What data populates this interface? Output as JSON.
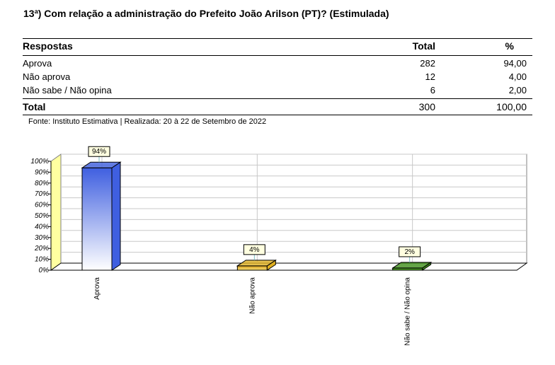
{
  "title": "13ª) Com relação a administração do Prefeito João Arilson (PT)? (Estimulada)",
  "table": {
    "headers": [
      "Respostas",
      "Total",
      "%"
    ],
    "rows": [
      {
        "label": "Aprova",
        "total": "282",
        "pct": "94,00"
      },
      {
        "label": "Não aprova",
        "total": "12",
        "pct": "4,00"
      },
      {
        "label": "Não sabe / Não opina",
        "total": "6",
        "pct": "2,00"
      }
    ],
    "footer": {
      "label": "Total",
      "total": "300",
      "pct": "100,00"
    }
  },
  "source": "Fonte: Instituto Estimativa | Realizada: 20 à 22 de Setembro de 2022",
  "chart_data": {
    "type": "bar",
    "categories": [
      "Aprova",
      "Não aprova",
      "Não sabe / Não opina"
    ],
    "values": [
      94,
      4,
      2
    ],
    "value_labels": [
      "94%",
      "4%",
      "2%"
    ],
    "ylim": [
      0,
      100
    ],
    "yticks": [
      "0%",
      "10%",
      "20%",
      "30%",
      "40%",
      "50%",
      "60%",
      "70%",
      "80%",
      "90%",
      "100%"
    ],
    "grid": true,
    "colors": [
      "#3f5fe0",
      "#e0b020",
      "#3f8f1a"
    ]
  }
}
